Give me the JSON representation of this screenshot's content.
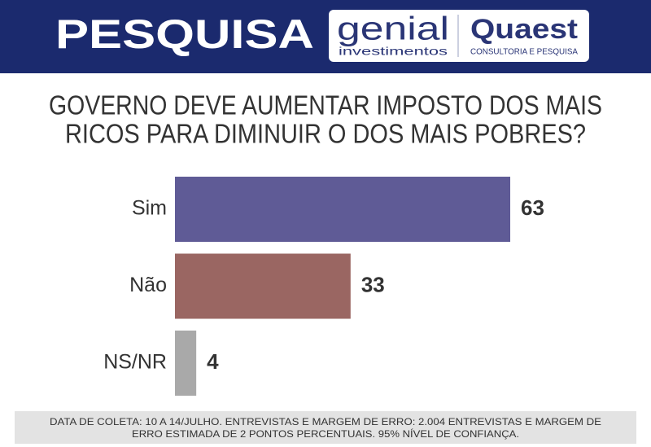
{
  "header": {
    "label": "PESQUISA",
    "partner_1": "genial",
    "partner_1_sub": "investimentos",
    "partner_2": "Quaest",
    "partner_2_sub": "CONSULTORIA E PESQUISA"
  },
  "chart_data": {
    "type": "bar",
    "orientation": "horizontal",
    "title": [
      "GOVERNO DEVE AUMENTAR IMPOSTO DOS MAIS",
      "RICOS PARA DIMINUIR O DOS MAIS POBRES?"
    ],
    "categories": [
      "Sim",
      "Não",
      "NS/NR"
    ],
    "values": [
      63,
      33,
      4
    ],
    "colors": [
      "#5f5b96",
      "#9a6662",
      "#a9a9a9"
    ]
  },
  "footer": {
    "note": [
      "DATA DE COLETA: 10 A 14/JULHO. ENTREVISTAS E MARGEM DE ERRO: 2.004 ENTREVISTAS E MARGEM DE",
      "ERRO ESTIMADA DE 2 PONTOS PERCENTUAIS. 95% NÍVEL DE CONFIANÇA."
    ]
  }
}
